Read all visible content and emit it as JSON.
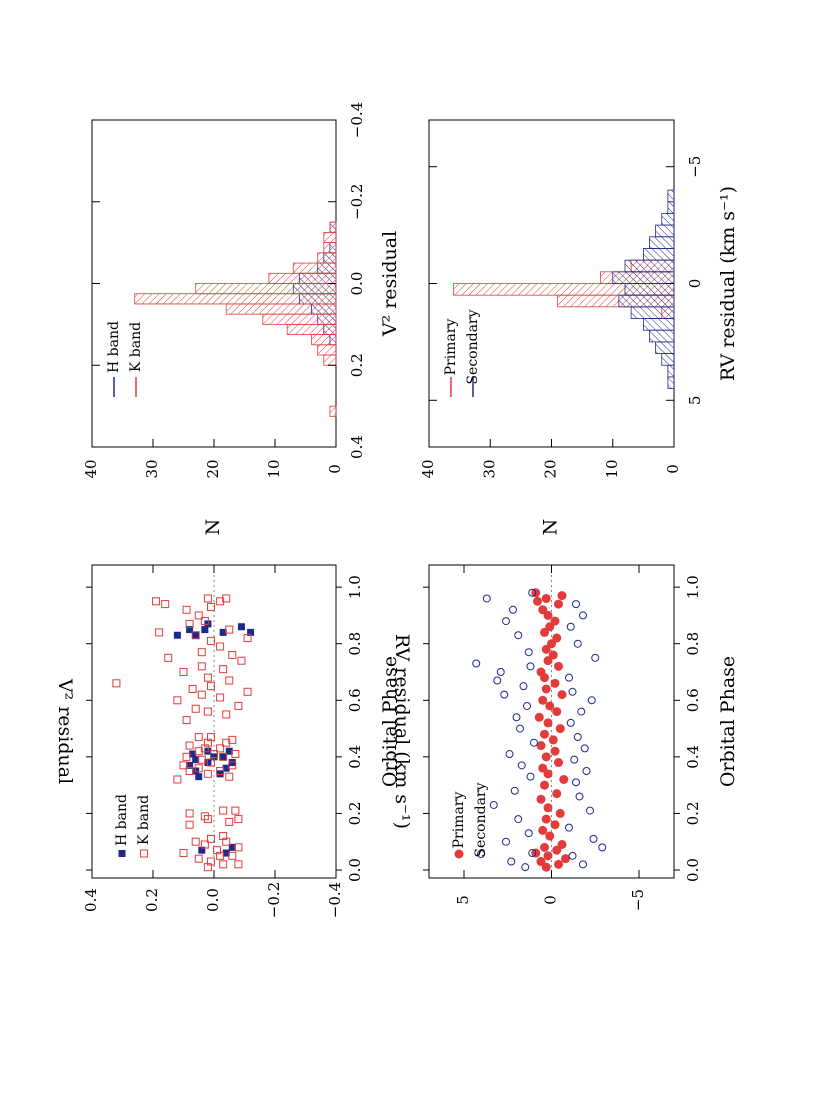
{
  "colors": {
    "red": "#e23b3b",
    "blue": "#1e2a8a",
    "axis": "#000000",
    "zero_line": "#888888"
  },
  "chart_data": [
    {
      "id": "v2_vs_phase",
      "type": "scatter",
      "xlabel": "Orbital Phase",
      "ylabel": "V² residual",
      "xlim": [
        0,
        1.05
      ],
      "ylim": [
        -0.4,
        0.4
      ],
      "xticks": [
        "0.0",
        "0.2",
        "0.4",
        "0.6",
        "0.8",
        "1.0"
      ],
      "yticks": [
        "0.4",
        "0.2",
        "0.0",
        "−0.2",
        "−0.4"
      ],
      "legend": [
        "H band",
        "K band"
      ],
      "series": [
        {
          "name": "H band",
          "x": [
            0.06,
            0.07,
            0.08,
            0.33,
            0.34,
            0.35,
            0.36,
            0.37,
            0.38,
            0.38,
            0.39,
            0.4,
            0.4,
            0.41,
            0.42,
            0.42,
            0.83,
            0.83,
            0.84,
            0.84,
            0.85,
            0.85,
            0.86,
            0.87
          ],
          "y": [
            -0.04,
            0.04,
            -0.06,
            0.05,
            -0.02,
            0.06,
            -0.04,
            0.08,
            0.02,
            -0.06,
            0.06,
            0.0,
            -0.03,
            0.07,
            0.02,
            -0.05,
            0.12,
            0.06,
            -0.03,
            -0.12,
            0.08,
            0.03,
            -0.09,
            0.02
          ]
        },
        {
          "name": "K band",
          "x": [
            0.01,
            0.02,
            0.02,
            0.03,
            0.04,
            0.05,
            0.05,
            0.06,
            0.07,
            0.08,
            0.09,
            0.1,
            0.1,
            0.11,
            0.12,
            0.16,
            0.17,
            0.18,
            0.18,
            0.19,
            0.2,
            0.21,
            0.21,
            0.32,
            0.33,
            0.34,
            0.35,
            0.35,
            0.36,
            0.37,
            0.37,
            0.38,
            0.39,
            0.4,
            0.4,
            0.41,
            0.41,
            0.42,
            0.43,
            0.43,
            0.44,
            0.45,
            0.45,
            0.46,
            0.47,
            0.47,
            0.53,
            0.55,
            0.56,
            0.57,
            0.58,
            0.6,
            0.61,
            0.62,
            0.63,
            0.64,
            0.65,
            0.66,
            0.67,
            0.68,
            0.7,
            0.71,
            0.72,
            0.74,
            0.75,
            0.76,
            0.77,
            0.79,
            0.81,
            0.82,
            0.83,
            0.84,
            0.85,
            0.87,
            0.88,
            0.9,
            0.92,
            0.93,
            0.94,
            0.95,
            0.95,
            0.96,
            0.96
          ],
          "y": [
            0.02,
            -0.03,
            -0.08,
            0.01,
            0.05,
            -0.02,
            -0.06,
            0.1,
            -0.01,
            -0.08,
            0.03,
            -0.04,
            0.06,
            0.01,
            -0.03,
            0.08,
            -0.05,
            0.02,
            -0.08,
            0.03,
            0.08,
            -0.03,
            -0.07,
            0.12,
            -0.05,
            0.02,
            0.08,
            -0.02,
            0.05,
            0.1,
            -0.06,
            0.01,
            0.04,
            -0.03,
            0.09,
            0.0,
            -0.07,
            0.05,
            -0.02,
            0.03,
            0.08,
            -0.04,
            0.02,
            -0.06,
            0.01,
            0.05,
            0.09,
            -0.04,
            0.02,
            0.06,
            -0.08,
            0.12,
            -0.02,
            0.04,
            -0.11,
            0.07,
            0.01,
            0.32,
            -0.05,
            0.02,
            0.1,
            -0.03,
            0.04,
            -0.09,
            0.15,
            -0.06,
            0.04,
            -0.02,
            0.01,
            -0.11,
            0.06,
            0.18,
            -0.05,
            0.08,
            0.03,
            0.05,
            0.09,
            0.01,
            0.16,
            -0.02,
            0.19,
            -0.04,
            0.02
          ]
        }
      ]
    },
    {
      "id": "v2_hist",
      "type": "bar",
      "xlabel": "V² residual",
      "ylabel": "N",
      "xlim": [
        -0.4,
        0.4
      ],
      "ylim": [
        0,
        40
      ],
      "xticks": [
        "−0.4",
        "−0.2",
        "0.0",
        "0.2",
        "0.4"
      ],
      "yticks": [
        "40",
        "30",
        "20",
        "10",
        "0"
      ],
      "bin_width": 0.025,
      "legend": [
        "H band",
        "K band"
      ],
      "series": [
        {
          "name": "H band",
          "bins": [
            -0.15,
            -0.125,
            -0.1,
            -0.075,
            -0.05,
            -0.025,
            0.0,
            0.025,
            0.05,
            0.075,
            0.1,
            0.125,
            0.15
          ],
          "counts": [
            1,
            0,
            1,
            2,
            3,
            6,
            7,
            6,
            4,
            3,
            2,
            1,
            0
          ]
        },
        {
          "name": "K band",
          "bins": [
            -0.15,
            -0.125,
            -0.1,
            -0.075,
            -0.05,
            -0.025,
            0.0,
            0.025,
            0.05,
            0.075,
            0.1,
            0.125,
            0.15,
            0.175,
            0.3
          ],
          "counts": [
            1,
            2,
            2,
            3,
            7,
            11,
            23,
            33,
            18,
            12,
            8,
            4,
            3,
            2,
            1
          ]
        }
      ]
    },
    {
      "id": "rv_vs_phase",
      "type": "scatter",
      "xlabel": "Orbital Phase",
      "ylabel": "RV residual (km s⁻¹)",
      "xlim": [
        0,
        1.05
      ],
      "ylim": [
        -7,
        7
      ],
      "xticks": [
        "0.0",
        "0.2",
        "0.4",
        "0.6",
        "0.8",
        "1.0"
      ],
      "yticks": [
        "5",
        "0",
        "−5"
      ],
      "legend": [
        "Primary",
        "Secondary"
      ],
      "series": [
        {
          "name": "Primary",
          "x": [
            0.01,
            0.02,
            0.03,
            0.04,
            0.05,
            0.06,
            0.07,
            0.08,
            0.09,
            0.12,
            0.14,
            0.16,
            0.18,
            0.2,
            0.22,
            0.25,
            0.27,
            0.3,
            0.32,
            0.34,
            0.36,
            0.38,
            0.4,
            0.42,
            0.44,
            0.46,
            0.48,
            0.5,
            0.52,
            0.54,
            0.56,
            0.58,
            0.6,
            0.62,
            0.64,
            0.66,
            0.68,
            0.7,
            0.72,
            0.74,
            0.76,
            0.78,
            0.8,
            0.82,
            0.84,
            0.86,
            0.88,
            0.9,
            0.92,
            0.94,
            0.95,
            0.96,
            0.97,
            0.98
          ],
          "y": [
            0.3,
            -0.4,
            0.6,
            -0.8,
            0.2,
            0.9,
            -0.3,
            0.4,
            -0.6,
            0.1,
            0.5,
            -0.2,
            0.3,
            -0.5,
            0.2,
            0.6,
            -0.3,
            0.4,
            -0.7,
            0.2,
            0.5,
            -0.4,
            0.3,
            -0.2,
            0.6,
            -0.1,
            0.4,
            -0.5,
            0.2,
            0.7,
            -0.3,
            0.1,
            0.5,
            -0.6,
            0.3,
            -0.2,
            0.4,
            0.6,
            -0.4,
            0.2,
            -0.1,
            0.3,
            0.0,
            -0.3,
            0.4,
            0.1,
            -0.2,
            0.2,
            0.5,
            -0.4,
            0.8,
            0.3,
            -0.6,
            0.9
          ]
        },
        {
          "name": "Secondary",
          "x": [
            0.01,
            0.02,
            0.03,
            0.05,
            0.06,
            0.08,
            0.1,
            0.11,
            0.13,
            0.15,
            0.18,
            0.21,
            0.23,
            0.26,
            0.28,
            0.31,
            0.33,
            0.35,
            0.37,
            0.39,
            0.41,
            0.43,
            0.45,
            0.47,
            0.5,
            0.52,
            0.54,
            0.56,
            0.58,
            0.6,
            0.62,
            0.63,
            0.65,
            0.67,
            0.68,
            0.7,
            0.72,
            0.73,
            0.75,
            0.77,
            0.8,
            0.83,
            0.86,
            0.88,
            0.9,
            0.92,
            0.94,
            0.96,
            0.98
          ],
          "y": [
            1.5,
            -1.8,
            2.3,
            -1.2,
            1.1,
            -2.9,
            2.6,
            -2.4,
            1.3,
            -1.0,
            1.9,
            -2.2,
            3.3,
            -1.6,
            2.1,
            -1.4,
            1.2,
            -2.0,
            1.7,
            -1.3,
            2.4,
            -1.9,
            1.0,
            -1.5,
            1.8,
            -1.1,
            2.0,
            -1.7,
            1.4,
            -2.3,
            2.7,
            -1.2,
            1.6,
            3.1,
            -1.0,
            2.9,
            1.2,
            4.3,
            -2.5,
            1.3,
            -1.5,
            1.9,
            -1.1,
            2.6,
            -1.8,
            2.2,
            -1.4,
            3.7,
            1.1
          ]
        }
      ]
    },
    {
      "id": "rv_hist",
      "type": "bar",
      "xlabel": "RV residual (km s⁻¹)",
      "ylabel": "N",
      "xlim": [
        -7,
        7
      ],
      "ylim": [
        0,
        40
      ],
      "xticks": [
        "−5",
        "0",
        "5"
      ],
      "yticks": [
        "40",
        "30",
        "20",
        "10",
        "0"
      ],
      "bin_width": 0.5,
      "legend": [
        "Primary",
        "Secondary"
      ],
      "series": [
        {
          "name": "Primary",
          "bins": [
            -1.0,
            -0.5,
            0.0,
            0.5,
            1.0
          ],
          "counts": [
            7,
            12,
            36,
            19,
            2
          ]
        },
        {
          "name": "Secondary",
          "bins": [
            -4.0,
            -3.5,
            -3.0,
            -2.5,
            -2.0,
            -1.5,
            -1.0,
            -0.5,
            0.0,
            0.5,
            1.0,
            1.5,
            2.0,
            2.5,
            3.0,
            3.5,
            4.0
          ],
          "counts": [
            1,
            1,
            2,
            3,
            4,
            5,
            8,
            10,
            8,
            9,
            7,
            5,
            4,
            3,
            2,
            1,
            1
          ]
        }
      ]
    }
  ]
}
